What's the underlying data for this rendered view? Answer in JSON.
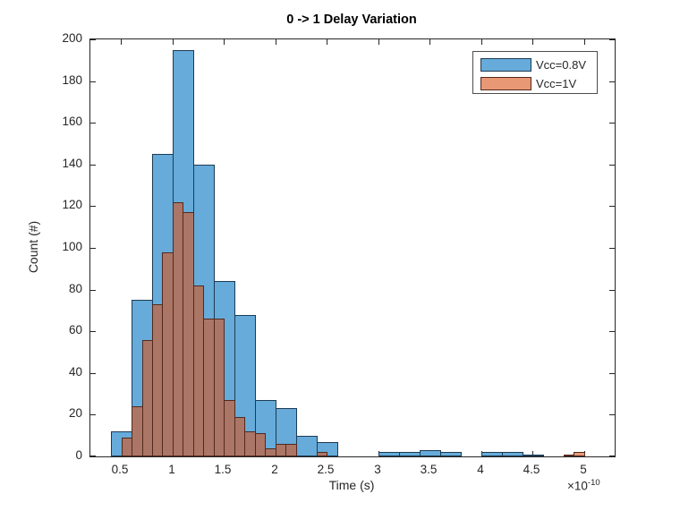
{
  "figure": {
    "title": "0 -> 1 Delay Variation",
    "x_label": "Time (s)",
    "y_label": "Count (#)",
    "x_multiplier_base": "×10",
    "x_multiplier_exp": "-10"
  },
  "legend": {
    "position": "top-right",
    "entries": [
      {
        "label": "Vcc=0.8V",
        "swatch_color": "#66ABD9",
        "swatch_edge": "#1D3B54"
      },
      {
        "label": "Vcc=1V",
        "swatch_color": "#E89875",
        "swatch_edge": "#53291D"
      }
    ]
  },
  "chart_data": {
    "type": "bar",
    "subtype": "overlaid_histogram",
    "title": "0 -> 1 Delay Variation",
    "xlabel": "Time (s)",
    "ylabel": "Count (#)",
    "x_unit": "seconds, axis values scaled by 1e-10",
    "xlim": [
      0.2,
      5.3
    ],
    "ylim": [
      0,
      200
    ],
    "x_ticks": [
      0.5,
      1,
      1.5,
      2,
      2.5,
      3,
      3.5,
      4,
      4.5,
      5
    ],
    "y_ticks": [
      0,
      20,
      40,
      60,
      80,
      100,
      120,
      140,
      160,
      180,
      200
    ],
    "grid": false,
    "legend_position": "top-right",
    "axis_color": "#262626",
    "series": [
      {
        "name": "Vcc=0.8V",
        "bin_width": 0.2,
        "face_color": "#66ABD9",
        "edge_color": "#1D3B54",
        "bins_x0_count": [
          [
            0.4,
            12
          ],
          [
            0.6,
            75
          ],
          [
            0.8,
            145
          ],
          [
            1.0,
            195
          ],
          [
            1.2,
            140
          ],
          [
            1.4,
            84
          ],
          [
            1.6,
            68
          ],
          [
            1.8,
            27
          ],
          [
            2.0,
            23
          ],
          [
            2.2,
            10
          ],
          [
            2.4,
            7
          ],
          [
            3.0,
            2
          ],
          [
            3.2,
            2
          ],
          [
            3.4,
            3
          ],
          [
            3.6,
            2
          ],
          [
            4.0,
            2
          ],
          [
            4.2,
            2
          ],
          [
            4.4,
            1
          ]
        ]
      },
      {
        "name": "Vcc=1V",
        "bin_width": 0.1,
        "face_color": "rgba(217,83,25,0.6)",
        "edge_color": "#53291D",
        "bins_x0_count": [
          [
            0.5,
            9
          ],
          [
            0.6,
            24
          ],
          [
            0.7,
            56
          ],
          [
            0.8,
            73
          ],
          [
            0.9,
            98
          ],
          [
            1.0,
            122
          ],
          [
            1.1,
            117
          ],
          [
            1.2,
            82
          ],
          [
            1.3,
            66
          ],
          [
            1.4,
            66
          ],
          [
            1.5,
            27
          ],
          [
            1.6,
            19
          ],
          [
            1.7,
            12
          ],
          [
            1.8,
            11
          ],
          [
            1.9,
            4
          ],
          [
            2.0,
            6
          ],
          [
            2.1,
            6
          ],
          [
            2.4,
            2
          ],
          [
            4.8,
            1
          ],
          [
            4.9,
            2
          ]
        ]
      }
    ]
  }
}
